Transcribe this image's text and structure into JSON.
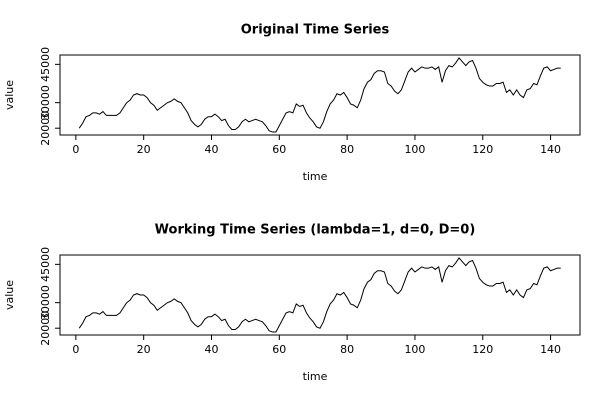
{
  "chart_data": [
    {
      "type": "line",
      "title": "Original Time Series",
      "xlabel": "time",
      "ylabel": "value",
      "color": "#000000",
      "x": [
        1,
        2,
        3,
        4,
        5,
        6,
        7,
        8,
        9,
        10,
        11,
        12,
        13,
        14,
        15,
        16,
        17,
        18,
        19,
        20,
        21,
        22,
        23,
        24,
        25,
        26,
        27,
        28,
        29,
        30,
        31,
        32,
        33,
        34,
        35,
        36,
        37,
        38,
        39,
        40,
        41,
        42,
        43,
        44,
        45,
        46,
        47,
        48,
        49,
        50,
        51,
        52,
        53,
        54,
        55,
        56,
        57,
        58,
        59,
        60,
        61,
        62,
        63,
        64,
        65,
        66,
        67,
        68,
        69,
        70,
        71,
        72,
        73,
        74,
        75,
        76,
        77,
        78,
        79,
        80,
        81,
        82,
        83,
        84,
        85,
        86,
        87,
        88,
        89,
        90,
        91,
        92,
        93,
        94,
        95,
        96,
        97,
        98,
        99,
        100,
        101,
        102,
        103,
        104,
        105,
        106,
        107,
        108,
        109,
        110,
        111,
        112,
        113,
        114,
        115,
        116,
        117,
        118,
        119,
        120,
        121,
        122,
        123,
        124,
        125,
        126,
        127,
        128,
        129,
        130,
        131,
        132,
        133,
        134,
        135,
        136,
        137,
        138,
        139,
        140,
        141,
        142,
        143
      ],
      "values": [
        20000,
        22000,
        24500,
        25000,
        26000,
        26000,
        25500,
        26500,
        25000,
        25000,
        25000,
        25000,
        26000,
        28000,
        30000,
        31000,
        33000,
        33500,
        33000,
        33000,
        32000,
        30000,
        29000,
        27000,
        28000,
        29000,
        30000,
        30500,
        31500,
        30500,
        30000,
        28000,
        26000,
        23000,
        21500,
        20500,
        21500,
        23500,
        24500,
        24500,
        25500,
        24500,
        23000,
        23500,
        21000,
        19500,
        19500,
        20500,
        22500,
        23500,
        22500,
        23000,
        23500,
        23000,
        22500,
        21000,
        19000,
        18500,
        18500,
        21000,
        23500,
        26000,
        26500,
        26000,
        29500,
        28500,
        29000,
        26000,
        24000,
        22500,
        20500,
        20000,
        22500,
        26500,
        29500,
        31000,
        33500,
        33000,
        34000,
        32000,
        29500,
        29000,
        28000,
        31000,
        35500,
        38000,
        39000,
        41500,
        42500,
        42500,
        42000,
        37500,
        36500,
        34500,
        33500,
        35000,
        38500,
        42000,
        43500,
        42000,
        43000,
        44000,
        43500,
        43500,
        44000,
        43000,
        44000,
        38000,
        42500,
        44500,
        44000,
        45500,
        47500,
        46000,
        44500,
        46000,
        46500,
        43500,
        39500,
        38000,
        37000,
        36500,
        36500,
        37500,
        37500,
        38000,
        34000,
        35000,
        33000,
        35000,
        33000,
        32000,
        35000,
        35500,
        37500,
        37000,
        40500,
        43500,
        44000,
        42500,
        43000,
        43500,
        43500
      ],
      "xlim": [
        -4.68,
        148.68
      ],
      "xticks": [
        0,
        20,
        40,
        60,
        80,
        100,
        120,
        140
      ],
      "ylim": [
        17340,
        48660
      ],
      "yticks": [
        20000,
        30000,
        45000
      ]
    },
    {
      "type": "line",
      "title": "Working Time Series (lambda=1, d=0, D=0)",
      "xlabel": "time",
      "ylabel": "value",
      "color": "#000000",
      "x": [
        1,
        2,
        3,
        4,
        5,
        6,
        7,
        8,
        9,
        10,
        11,
        12,
        13,
        14,
        15,
        16,
        17,
        18,
        19,
        20,
        21,
        22,
        23,
        24,
        25,
        26,
        27,
        28,
        29,
        30,
        31,
        32,
        33,
        34,
        35,
        36,
        37,
        38,
        39,
        40,
        41,
        42,
        43,
        44,
        45,
        46,
        47,
        48,
        49,
        50,
        51,
        52,
        53,
        54,
        55,
        56,
        57,
        58,
        59,
        60,
        61,
        62,
        63,
        64,
        65,
        66,
        67,
        68,
        69,
        70,
        71,
        72,
        73,
        74,
        75,
        76,
        77,
        78,
        79,
        80,
        81,
        82,
        83,
        84,
        85,
        86,
        87,
        88,
        89,
        90,
        91,
        92,
        93,
        94,
        95,
        96,
        97,
        98,
        99,
        100,
        101,
        102,
        103,
        104,
        105,
        106,
        107,
        108,
        109,
        110,
        111,
        112,
        113,
        114,
        115,
        116,
        117,
        118,
        119,
        120,
        121,
        122,
        123,
        124,
        125,
        126,
        127,
        128,
        129,
        130,
        131,
        132,
        133,
        134,
        135,
        136,
        137,
        138,
        139,
        140,
        141,
        142,
        143
      ],
      "values": [
        20000,
        22000,
        24500,
        25000,
        26000,
        26000,
        25500,
        26500,
        25000,
        25000,
        25000,
        25000,
        26000,
        28000,
        30000,
        31000,
        33000,
        33500,
        33000,
        33000,
        32000,
        30000,
        29000,
        27000,
        28000,
        29000,
        30000,
        30500,
        31500,
        30500,
        30000,
        28000,
        26000,
        23000,
        21500,
        20500,
        21500,
        23500,
        24500,
        24500,
        25500,
        24500,
        23000,
        23500,
        21000,
        19500,
        19500,
        20500,
        22500,
        23500,
        22500,
        23000,
        23500,
        23000,
        22500,
        21000,
        19000,
        18500,
        18500,
        21000,
        23500,
        26000,
        26500,
        26000,
        29500,
        28500,
        29000,
        26000,
        24000,
        22500,
        20500,
        20000,
        22500,
        26500,
        29500,
        31000,
        33500,
        33000,
        34000,
        32000,
        29500,
        29000,
        28000,
        31000,
        35500,
        38000,
        39000,
        41500,
        42500,
        42500,
        42000,
        37500,
        36500,
        34500,
        33500,
        35000,
        38500,
        42000,
        43500,
        42000,
        43000,
        44000,
        43500,
        43500,
        44000,
        43000,
        44000,
        38000,
        42500,
        44500,
        44000,
        45500,
        47500,
        46000,
        44500,
        46000,
        46500,
        43500,
        39500,
        38000,
        37000,
        36500,
        36500,
        37500,
        37500,
        38000,
        34000,
        35000,
        33000,
        35000,
        33000,
        32000,
        35000,
        35500,
        37500,
        37000,
        40500,
        43500,
        44000,
        42500,
        43000,
        43500,
        43500
      ],
      "xlim": [
        -4.68,
        148.68
      ],
      "xticks": [
        0,
        20,
        40,
        60,
        80,
        100,
        120,
        140
      ],
      "ylim": [
        17340,
        48660
      ],
      "yticks": [
        20000,
        30000,
        45000
      ]
    }
  ]
}
